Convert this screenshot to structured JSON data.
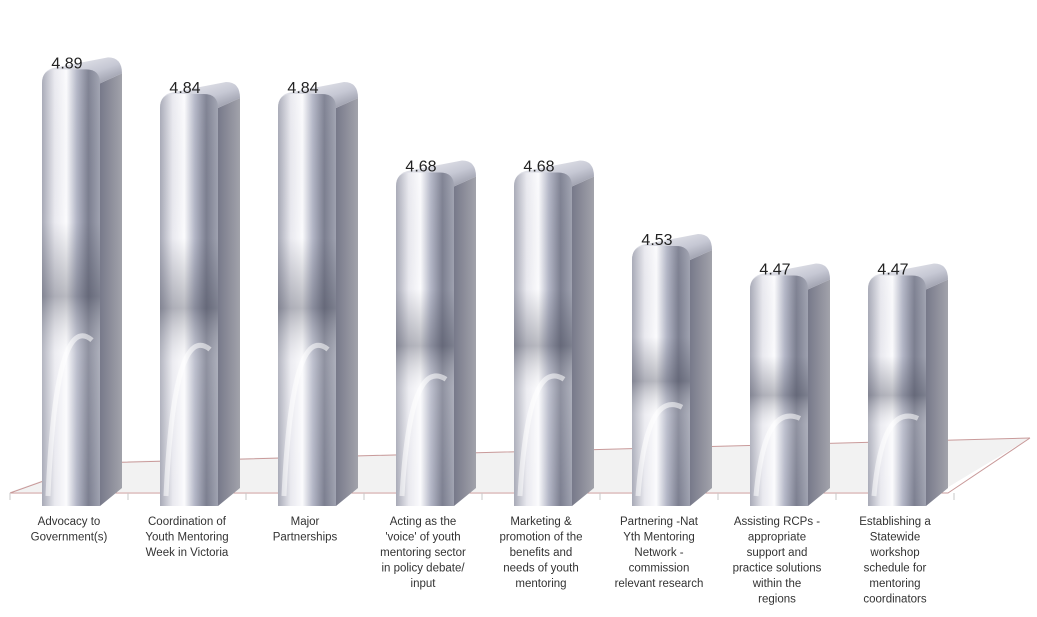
{
  "chart_data": {
    "type": "bar",
    "title": "",
    "xlabel": "",
    "ylabel": "",
    "ylim": [
      4.0,
      4.95
    ],
    "grid": false,
    "legend": "none",
    "style": "3d-cylinder-metallic",
    "colors": {
      "bar_light": "#f4f4f8",
      "bar_mid": "#b9bccb",
      "bar_dark": "#5e6172",
      "bar_side": "#8e8f96",
      "floor": "#f2f2f2",
      "floor_edge": "#c99a9a",
      "tick": "#c8c8c8"
    },
    "categories": [
      [
        "Advocacy to",
        "Government(s)"
      ],
      [
        "Coordination of",
        "Youth Mentoring",
        "Week in Victoria"
      ],
      [
        "Major",
        "Partnerships"
      ],
      [
        "Acting as the",
        "'voice' of youth",
        "mentoring sector",
        "in policy debate/",
        "input"
      ],
      [
        "Marketing &",
        "promotion of the",
        "benefits and",
        "needs of youth",
        "mentoring"
      ],
      [
        "Partnering -Nat",
        "Yth Mentoring",
        "Network -",
        "commission",
        "relevant research"
      ],
      [
        "Assisting RCPs -",
        "appropriate",
        "support and",
        "practice solutions",
        "within the",
        "regions"
      ],
      [
        "Establishing a",
        "Statewide",
        "workshop",
        "schedule for",
        "mentoring",
        "coordinators"
      ]
    ],
    "values": [
      4.89,
      4.84,
      4.84,
      4.68,
      4.68,
      4.53,
      4.47,
      4.47
    ],
    "data_labels": [
      "4.89",
      "4.84",
      "4.84",
      "4.68",
      "4.68",
      "4.53",
      "4.47",
      "4.47"
    ]
  }
}
